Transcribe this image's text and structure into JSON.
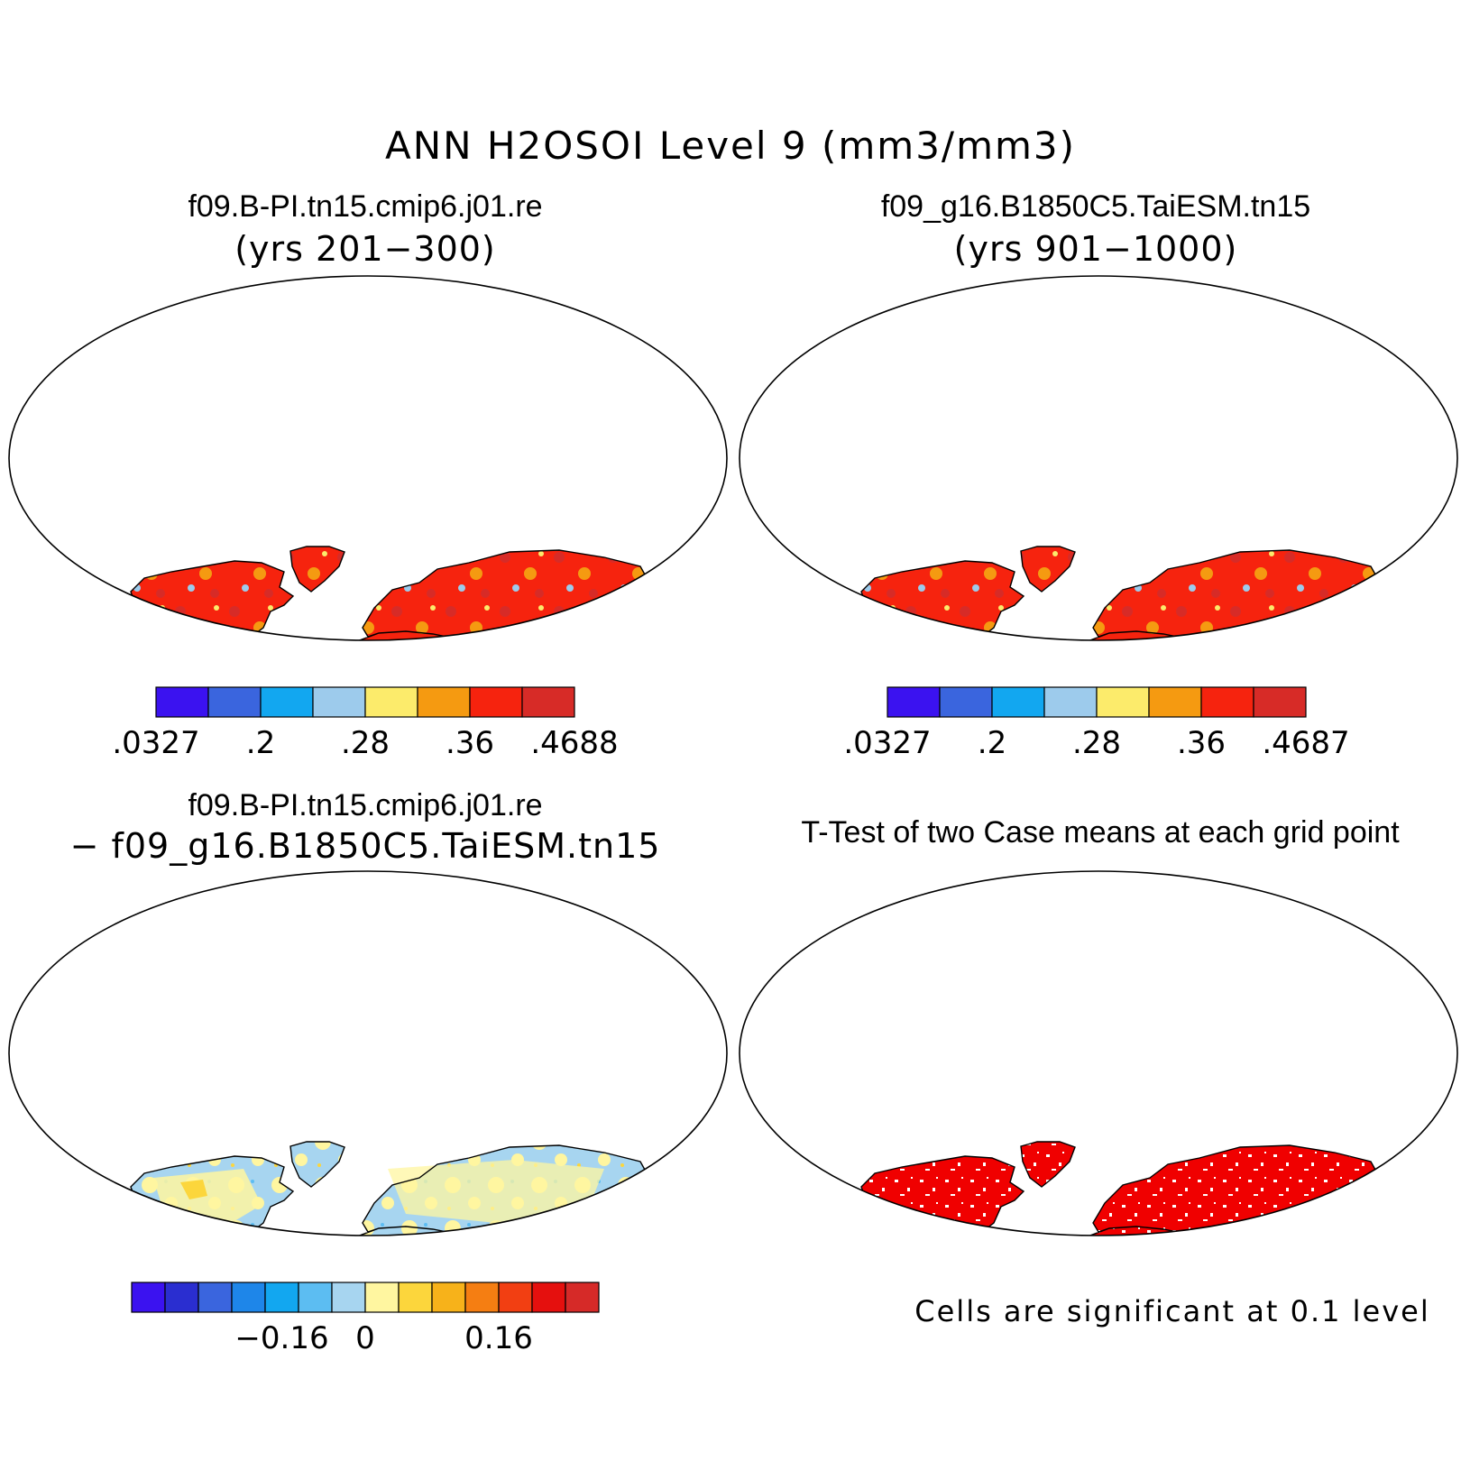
{
  "figure_title": "ANN H2OSOI Level 9 (mm3/mm3)",
  "colors": {
    "levels_8": [
      "#3b12f0",
      "#3a65de",
      "#12a7f0",
      "#9dcbec",
      "#fceb6b",
      "#f59a11",
      "#f6230e",
      "#d72b27"
    ],
    "levels_14": [
      "#3b12f0",
      "#2a2ed0",
      "#3a65de",
      "#1e86e9",
      "#12a7f0",
      "#5cbdf2",
      "#a7d5f0",
      "#fff6a0",
      "#fcd63c",
      "#f7b21a",
      "#f57e12",
      "#f23f12",
      "#e5100e",
      "#d62a28"
    ],
    "significant": "#f00000",
    "ocean": "#ffffff",
    "coast": "#000000"
  },
  "panels": [
    {
      "title": "f09.B-PI.tn15.cmip6.j01.re",
      "subtitle": "(yrs 201−300)",
      "map_type": "soil-moisture-field",
      "colorbar": {
        "labels": [
          ".0327",
          ".2",
          ".28",
          ".36",
          ".4688"
        ],
        "n_colors": 8
      }
    },
    {
      "title": "f09_g16.B1850C5.TaiESM.tn15",
      "subtitle": "(yrs 901−1000)",
      "map_type": "soil-moisture-field",
      "colorbar": {
        "labels": [
          ".0327",
          ".2",
          ".28",
          ".36",
          ".4687"
        ],
        "n_colors": 8
      }
    },
    {
      "title": "f09.B-PI.tn15.cmip6.j01.re",
      "subtitle": "− f09_g16.B1850C5.TaiESM.tn15",
      "map_type": "difference-field",
      "colorbar": {
        "labels": [
          "−0.16",
          "0",
          "0.16"
        ],
        "n_colors": 14
      }
    },
    {
      "title": "T-Test of two Case means at each grid point",
      "map_type": "significance-mask",
      "note": "Cells are significant at 0.1 level"
    }
  ]
}
